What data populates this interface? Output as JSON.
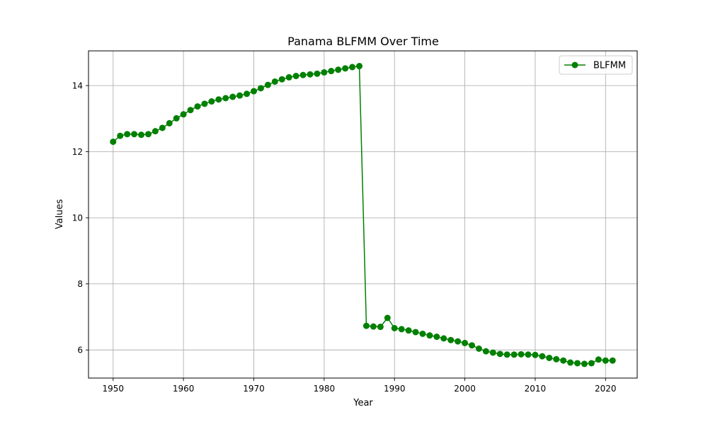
{
  "chart_data": {
    "type": "line",
    "title": "Panama BLFMM Over Time",
    "xlabel": "Year",
    "ylabel": "Values",
    "xlim": [
      1946.5,
      2024.5
    ],
    "ylim": [
      5.15,
      15.05
    ],
    "xticks": [
      1950,
      1960,
      1970,
      1980,
      1990,
      2000,
      2010,
      2020
    ],
    "yticks": [
      6,
      8,
      10,
      12,
      14
    ],
    "grid": true,
    "legend_position": "top-right",
    "series": [
      {
        "name": "BLFMM",
        "color": "#008000",
        "marker": "circle",
        "x": [
          1950,
          1951,
          1952,
          1953,
          1954,
          1955,
          1956,
          1957,
          1958,
          1959,
          1960,
          1961,
          1962,
          1963,
          1964,
          1965,
          1966,
          1967,
          1968,
          1969,
          1970,
          1971,
          1972,
          1973,
          1974,
          1975,
          1976,
          1977,
          1978,
          1979,
          1980,
          1981,
          1982,
          1983,
          1984,
          1985,
          1986,
          1987,
          1988,
          1989,
          1990,
          1991,
          1992,
          1993,
          1994,
          1995,
          1996,
          1997,
          1998,
          1999,
          2000,
          2001,
          2002,
          2003,
          2004,
          2005,
          2006,
          2007,
          2008,
          2009,
          2010,
          2011,
          2012,
          2013,
          2014,
          2015,
          2016,
          2017,
          2018,
          2019,
          2020,
          2021
        ],
        "values": [
          12.3,
          12.48,
          12.53,
          12.53,
          12.51,
          12.53,
          12.62,
          12.72,
          12.86,
          13.01,
          13.13,
          13.26,
          13.37,
          13.45,
          13.52,
          13.58,
          13.62,
          13.66,
          13.7,
          13.75,
          13.83,
          13.92,
          14.02,
          14.12,
          14.19,
          14.25,
          14.29,
          14.32,
          14.34,
          14.36,
          14.4,
          14.44,
          14.48,
          14.52,
          14.56,
          14.59,
          6.73,
          6.71,
          6.7,
          6.97,
          6.66,
          6.63,
          6.59,
          6.54,
          6.49,
          6.44,
          6.4,
          6.35,
          6.3,
          6.26,
          6.21,
          6.14,
          6.04,
          5.96,
          5.92,
          5.88,
          5.86,
          5.86,
          5.87,
          5.86,
          5.85,
          5.81,
          5.76,
          5.72,
          5.68,
          5.62,
          5.6,
          5.58,
          5.6,
          5.71,
          5.68,
          5.68
        ]
      }
    ]
  }
}
